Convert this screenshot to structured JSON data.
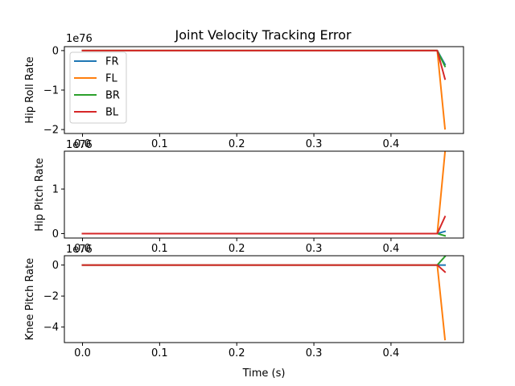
{
  "chart_data": {
    "type": "line",
    "title": "Joint Velocity Tracking Error",
    "xlabel": "Time (s)",
    "xlim": [
      -0.0235,
      0.494
    ],
    "x_ticks": [
      "0.0",
      "0.1",
      "0.2",
      "0.3",
      "0.4"
    ],
    "x_tick_values": [
      0.0,
      0.1,
      0.2,
      0.3,
      0.4
    ],
    "colors": {
      "FR": "#1f77b4",
      "FL": "#ff7f0e",
      "BR": "#2ca02c",
      "BL": "#d62728"
    },
    "legend": {
      "placement": "top-left",
      "entries": [
        "FR",
        "FL",
        "BR",
        "BL"
      ]
    },
    "grid": false,
    "x": [
      0.0,
      0.46,
      0.47
    ],
    "subplots": [
      {
        "ylabel": "Hip Roll Rate",
        "offset_text": "1e76",
        "ylim": [
          -2.1,
          0.1
        ],
        "y_ticks": [
          "0",
          "−1",
          "−2"
        ],
        "y_tick_values": [
          0,
          -1,
          -2
        ],
        "series": [
          {
            "name": "FR",
            "values": [
              0,
              0,
              -0.35
            ]
          },
          {
            "name": "FL",
            "values": [
              0,
              0,
              -1.98
            ]
          },
          {
            "name": "BR",
            "values": [
              0,
              0,
              -0.4
            ]
          },
          {
            "name": "BL",
            "values": [
              0,
              0,
              -0.72
            ]
          }
        ]
      },
      {
        "ylabel": "Hip Pitch Rate",
        "offset_text": "1e76",
        "ylim": [
          -0.1,
          1.85
        ],
        "y_ticks": [
          "0",
          "1"
        ],
        "y_tick_values": [
          0,
          1
        ],
        "series": [
          {
            "name": "FR",
            "values": [
              0,
              0,
              0.05
            ]
          },
          {
            "name": "FL",
            "values": [
              0,
              0,
              1.83
            ]
          },
          {
            "name": "BR",
            "values": [
              0,
              0,
              -0.05
            ]
          },
          {
            "name": "BL",
            "values": [
              0,
              0,
              0.38
            ]
          }
        ]
      },
      {
        "ylabel": "Knee Pitch Rate",
        "offset_text": "1e76",
        "ylim": [
          -5.0,
          0.6
        ],
        "y_ticks": [
          "0",
          "−2",
          "−4"
        ],
        "y_tick_values": [
          0,
          -2,
          -4
        ],
        "series": [
          {
            "name": "FR",
            "values": [
              0,
              0,
              0.0
            ]
          },
          {
            "name": "FL",
            "values": [
              0,
              0,
              -4.8
            ]
          },
          {
            "name": "BR",
            "values": [
              0,
              0,
              0.55
            ]
          },
          {
            "name": "BL",
            "values": [
              0,
              0,
              -0.45
            ]
          }
        ]
      }
    ]
  }
}
